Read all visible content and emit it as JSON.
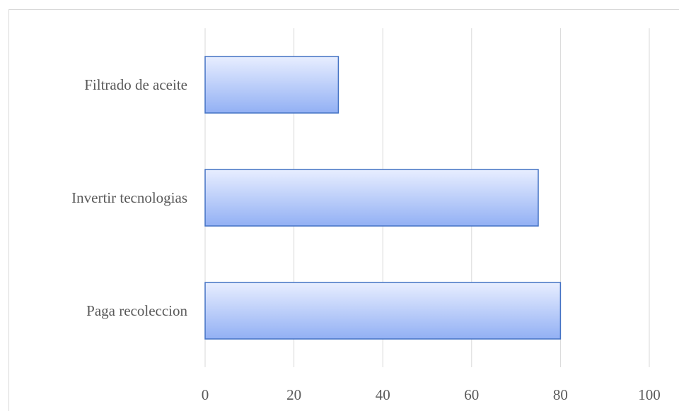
{
  "chart_data": {
    "type": "bar",
    "orientation": "horizontal",
    "categories": [
      "Filtrado de aceite",
      "Invertir tecnologias",
      "Paga recoleccion"
    ],
    "values": [
      30,
      75,
      80
    ],
    "xlim": [
      0,
      100
    ],
    "xticks": [
      "0",
      "20",
      "40",
      "60",
      "80",
      "100"
    ],
    "grid": true,
    "legend": "none",
    "colors": {
      "bar_top": "#e8eeff",
      "bar_bottom": "#92b0f4",
      "bar_border": "#4472c4",
      "grid": "#d9d9d9",
      "text": "#595959"
    }
  }
}
